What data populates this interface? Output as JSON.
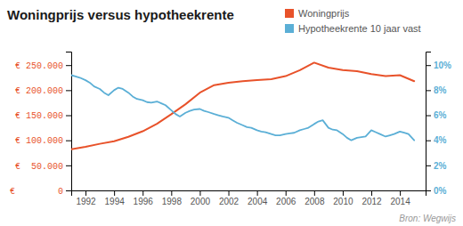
{
  "chart_data": {
    "type": "line",
    "title": "Woningprijs versus hypotheekrente",
    "legend": "top right",
    "annotations": [
      "Bron: Wegwijs"
    ],
    "xlim": [
      1991.0,
      2015.8
    ],
    "xticks": [
      1992,
      1994,
      1996,
      1998,
      2000,
      2002,
      2004,
      2006,
      2008,
      2010,
      2012,
      2014
    ],
    "ylim": [
      0,
      277000
    ],
    "yticks": [
      {
        "value": 0,
        "label": "€        0"
      },
      {
        "value": 50000,
        "label": "€  50.000"
      },
      {
        "value": 100000,
        "label": "€ 100.000"
      },
      {
        "value": 150000,
        "label": "€ 150.000"
      },
      {
        "value": 200000,
        "label": "€ 200.000"
      },
      {
        "value": 250000,
        "label": "€ 250.000"
      }
    ],
    "y2lim": [
      0,
      11.08
    ],
    "y2ticks": [
      {
        "value": 0,
        "label": "0%"
      },
      {
        "value": 2,
        "label": "2%"
      },
      {
        "value": 4,
        "label": "4%"
      },
      {
        "value": 6,
        "label": "6%"
      },
      {
        "value": 8,
        "label": "8%"
      },
      {
        "value": 10,
        "label": "10%"
      }
    ],
    "series": [
      {
        "name": "Woningprijs",
        "color": "#e8522a",
        "axis": "y",
        "x": [
          1991,
          1992,
          1993,
          1994,
          1995,
          1996,
          1997,
          1998,
          1999,
          2000,
          2001,
          2002,
          2003,
          2004,
          2005,
          2006,
          2007,
          2008,
          2009,
          2010,
          2011,
          2012,
          2013,
          2014,
          2015
        ],
        "values": [
          82000,
          87000,
          93000,
          98000,
          107000,
          118000,
          133000,
          152000,
          172000,
          195000,
          210000,
          215000,
          218000,
          220000,
          222000,
          228000,
          240000,
          255000,
          245000,
          240000,
          238000,
          232000,
          228000,
          230000,
          218000
        ]
      },
      {
        "name": "Hypotheekrente 10 jaar vast",
        "color": "#5bafd6",
        "axis": "y2",
        "x": [
          1991.0,
          1991.3,
          1991.6,
          1992.0,
          1992.3,
          1992.6,
          1993.0,
          1993.3,
          1993.6,
          1994.0,
          1994.3,
          1994.6,
          1995.0,
          1995.3,
          1995.6,
          1996.0,
          1996.3,
          1996.6,
          1997.0,
          1997.3,
          1997.6,
          1998.0,
          1998.3,
          1998.6,
          1999.0,
          1999.3,
          1999.6,
          2000.0,
          2000.3,
          2000.6,
          2001.0,
          2001.3,
          2001.6,
          2002.0,
          2002.3,
          2002.6,
          2003.0,
          2003.3,
          2003.6,
          2004.0,
          2004.3,
          2004.6,
          2005.0,
          2005.3,
          2005.6,
          2006.0,
          2006.3,
          2006.6,
          2007.0,
          2007.3,
          2007.6,
          2008.0,
          2008.3,
          2008.6,
          2009.0,
          2009.3,
          2009.6,
          2010.0,
          2010.3,
          2010.6,
          2011.0,
          2011.3,
          2011.6,
          2012.0,
          2012.3,
          2012.6,
          2013.0,
          2013.3,
          2013.6,
          2014.0,
          2014.3,
          2014.6,
          2015.0
        ],
        "values": [
          9.2,
          9.1,
          9.0,
          8.8,
          8.6,
          8.3,
          8.1,
          7.8,
          7.6,
          8.0,
          8.2,
          8.1,
          7.8,
          7.5,
          7.3,
          7.2,
          7.05,
          7.0,
          7.1,
          6.95,
          6.8,
          6.4,
          6.1,
          5.9,
          6.2,
          6.35,
          6.45,
          6.5,
          6.35,
          6.25,
          6.1,
          6.0,
          5.9,
          5.8,
          5.6,
          5.4,
          5.2,
          5.05,
          5.0,
          4.8,
          4.7,
          4.65,
          4.5,
          4.4,
          4.4,
          4.5,
          4.55,
          4.6,
          4.8,
          4.9,
          5.0,
          5.3,
          5.5,
          5.6,
          5.0,
          4.85,
          4.8,
          4.5,
          4.2,
          4.0,
          4.2,
          4.25,
          4.3,
          4.8,
          4.65,
          4.5,
          4.3,
          4.4,
          4.5,
          4.7,
          4.6,
          4.5,
          4.0
        ]
      }
    ]
  }
}
